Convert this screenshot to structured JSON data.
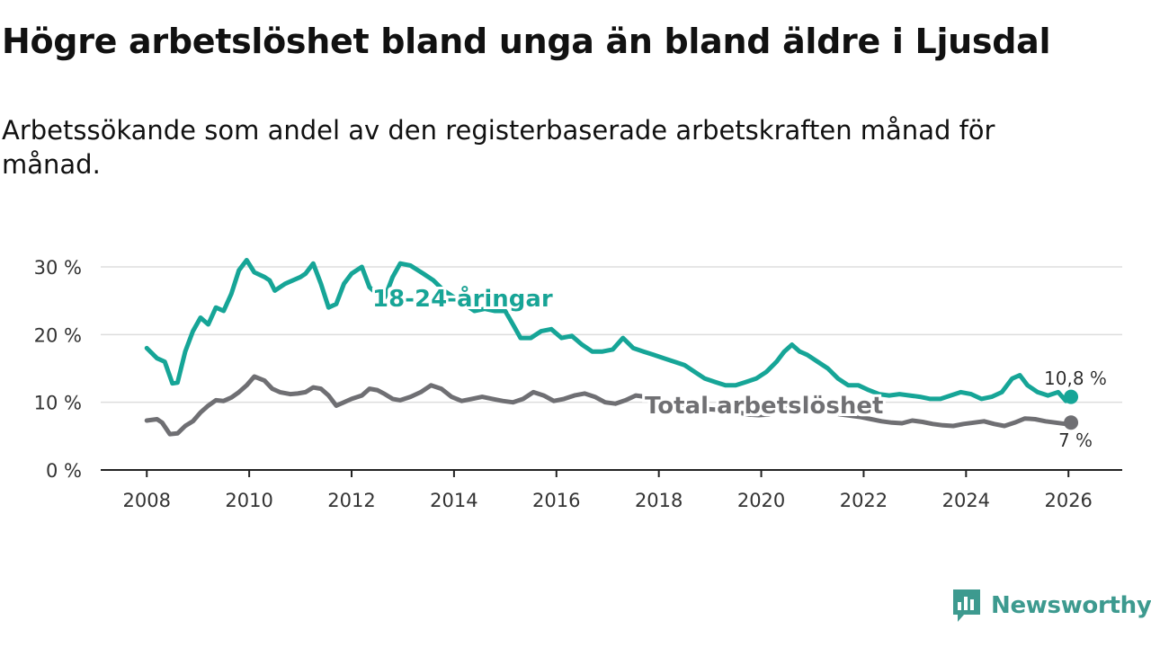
{
  "title": "Högre arbetslöshet bland unga än bland äldre i Ljusdal",
  "subtitle": "Arbetssökande som andel av den registerbaserade arbetskraften månad för månad.",
  "brand": {
    "name": "Newsworthy",
    "icon": "newsworthy-logo-icon",
    "color": "#3d9a8f"
  },
  "colors": {
    "youth": "#16a597",
    "total": "#6f6f73",
    "grid": "#dddddd",
    "axis": "#222222"
  },
  "chart_data": {
    "type": "line",
    "title": "Högre arbetslöshet bland unga än bland äldre i Ljusdal",
    "xlabel": "",
    "ylabel": "",
    "xlim": [
      2007.1,
      2027.05
    ],
    "ylim": [
      0,
      30
    ],
    "x_ticks": [
      2008,
      2010,
      2012,
      2014,
      2016,
      2018,
      2020,
      2022,
      2024,
      2026
    ],
    "x_tick_labels": [
      "2008",
      "2010",
      "2012",
      "2014",
      "2016",
      "2018",
      "2020",
      "2022",
      "2024",
      "2026"
    ],
    "y_ticks": [
      0,
      10,
      20,
      30
    ],
    "y_tick_labels": [
      "0 %",
      "10 %",
      "20 %",
      "30 %"
    ],
    "grid": true,
    "series": [
      {
        "name": "18-24-åringar",
        "label": "18-24-åringar",
        "color": "#16a597",
        "end_label": "10,8 %",
        "x": [
          2008.0,
          2008.2,
          2008.35,
          2008.5,
          2008.6,
          2008.75,
          2008.9,
          2009.05,
          2009.2,
          2009.35,
          2009.5,
          2009.65,
          2009.8,
          2009.95,
          2010.1,
          2010.3,
          2010.4,
          2010.5,
          2010.7,
          2010.85,
          2011.0,
          2011.1,
          2011.25,
          2011.4,
          2011.55,
          2011.7,
          2011.85,
          2012.0,
          2012.2,
          2012.35,
          2012.5,
          2012.65,
          2012.8,
          2012.95,
          2013.15,
          2013.4,
          2013.6,
          2013.8,
          2014.0,
          2014.2,
          2014.4,
          2014.6,
          2014.8,
          2015.0,
          2015.15,
          2015.3,
          2015.5,
          2015.7,
          2015.9,
          2016.1,
          2016.3,
          2016.5,
          2016.7,
          2016.9,
          2017.1,
          2017.3,
          2017.5,
          2017.7,
          2017.9,
          2018.1,
          2018.3,
          2018.5,
          2018.7,
          2018.9,
          2019.1,
          2019.3,
          2019.5,
          2019.7,
          2019.9,
          2020.1,
          2020.3,
          2020.45,
          2020.6,
          2020.75,
          2020.9,
          2021.1,
          2021.3,
          2021.5,
          2021.7,
          2021.9,
          2022.1,
          2022.3,
          2022.5,
          2022.7,
          2022.9,
          2023.1,
          2023.3,
          2023.5,
          2023.7,
          2023.9,
          2024.1,
          2024.3,
          2024.5,
          2024.7,
          2024.9,
          2025.05,
          2025.2,
          2025.4,
          2025.6,
          2025.8,
          2025.95,
          2026.05
        ],
        "y": [
          18,
          16.5,
          16,
          12.8,
          12.9,
          17.5,
          20.5,
          22.5,
          21.5,
          24,
          23.5,
          26,
          29.5,
          31,
          29.2,
          28.5,
          28,
          26.5,
          27.5,
          28,
          28.5,
          29,
          30.5,
          27.5,
          24,
          24.5,
          27.5,
          29,
          30,
          27,
          26,
          25.5,
          28.5,
          30.5,
          30.2,
          29,
          28,
          26.5,
          25.5,
          24.5,
          23.5,
          23.8,
          23.5,
          23.5,
          21.5,
          19.5,
          19.5,
          20.5,
          20.8,
          19.5,
          19.8,
          18.5,
          17.5,
          17.5,
          17.8,
          19.5,
          18,
          17.5,
          17,
          16.5,
          16,
          15.5,
          14.5,
          13.5,
          13,
          12.5,
          12.5,
          13,
          13.5,
          14.5,
          16,
          17.5,
          18.5,
          17.5,
          17,
          16,
          15,
          13.5,
          12.5,
          12.5,
          11.8,
          11.2,
          11,
          11.2,
          11,
          10.8,
          10.5,
          10.5,
          11,
          11.5,
          11.2,
          10.5,
          10.8,
          11.5,
          13.5,
          14,
          12.5,
          11.5,
          11,
          11.5,
          10.2,
          10.8
        ]
      },
      {
        "name": "Total arbetslöshet",
        "label": "Total arbetslöshet",
        "color": "#6f6f73",
        "end_label": "7 %",
        "x": [
          2008.0,
          2008.2,
          2008.3,
          2008.45,
          2008.6,
          2008.75,
          2008.9,
          2009.05,
          2009.2,
          2009.35,
          2009.5,
          2009.65,
          2009.8,
          2009.95,
          2010.1,
          2010.3,
          2010.45,
          2010.6,
          2010.8,
          2010.95,
          2011.1,
          2011.25,
          2011.4,
          2011.55,
          2011.7,
          2011.85,
          2012.0,
          2012.2,
          2012.35,
          2012.5,
          2012.65,
          2012.8,
          2012.95,
          2013.15,
          2013.35,
          2013.55,
          2013.75,
          2013.95,
          2014.15,
          2014.35,
          2014.55,
          2014.75,
          2014.95,
          2015.15,
          2015.35,
          2015.55,
          2015.75,
          2015.95,
          2016.15,
          2016.35,
          2016.55,
          2016.75,
          2016.95,
          2017.15,
          2017.35,
          2017.55,
          2017.75,
          2017.95,
          2018.15,
          2018.35,
          2018.55,
          2018.75,
          2018.95,
          2019.15,
          2019.35,
          2019.55,
          2019.75,
          2019.95,
          2020.15,
          2020.35,
          2020.55,
          2020.75,
          2020.95,
          2021.15,
          2021.35,
          2021.55,
          2021.75,
          2021.95,
          2022.15,
          2022.35,
          2022.55,
          2022.75,
          2022.95,
          2023.15,
          2023.35,
          2023.55,
          2023.75,
          2023.95,
          2024.15,
          2024.35,
          2024.55,
          2024.75,
          2024.95,
          2025.15,
          2025.35,
          2025.55,
          2025.75,
          2025.95,
          2026.05
        ],
        "y": [
          7.3,
          7.5,
          7,
          5.3,
          5.4,
          6.5,
          7.2,
          8.5,
          9.5,
          10.3,
          10.2,
          10.7,
          11.5,
          12.5,
          13.8,
          13.2,
          12,
          11.5,
          11.2,
          11.3,
          11.5,
          12.2,
          12,
          11,
          9.5,
          10,
          10.5,
          11,
          12,
          11.8,
          11.2,
          10.5,
          10.3,
          10.8,
          11.5,
          12.5,
          12,
          10.8,
          10.2,
          10.5,
          10.8,
          10.5,
          10.2,
          10,
          10.5,
          11.5,
          11,
          10.2,
          10.5,
          11,
          11.3,
          10.8,
          10,
          9.8,
          10.3,
          11,
          10.8,
          10.5,
          10.2,
          9.8,
          9.5,
          9.3,
          9,
          8.9,
          8.6,
          8.5,
          8.2,
          8.1,
          8.2,
          8.8,
          9.5,
          9.3,
          9,
          8.8,
          8.5,
          8.2,
          8,
          7.8,
          7.5,
          7.2,
          7,
          6.9,
          7.3,
          7.1,
          6.8,
          6.6,
          6.5,
          6.8,
          7,
          7.2,
          6.8,
          6.5,
          7,
          7.6,
          7.5,
          7.2,
          7,
          6.8,
          7
        ]
      }
    ]
  }
}
